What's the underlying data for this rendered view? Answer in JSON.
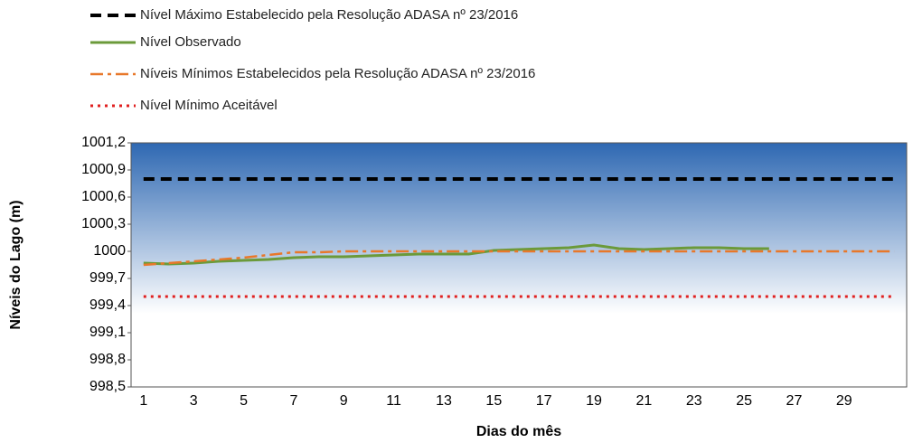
{
  "chart_data": {
    "type": "line",
    "x_label": "Dias do mês",
    "y_label": "Níveis do Lago (m)",
    "categories": [
      "1",
      null,
      "3",
      null,
      "5",
      null,
      "7",
      null,
      "9",
      null,
      "11",
      null,
      "13",
      null,
      "15",
      null,
      "17",
      null,
      "19",
      null,
      "21",
      null,
      "23",
      null,
      "25",
      null,
      "27",
      null,
      "29",
      null,
      null
    ],
    "ylim": [
      998.5,
      1001.2
    ],
    "yticks": [
      {
        "value": 998.5,
        "label": "998,5"
      },
      {
        "value": 998.8,
        "label": "998,8"
      },
      {
        "value": 999.1,
        "label": "999,1"
      },
      {
        "value": 999.4,
        "label": "999,4"
      },
      {
        "value": 999.7,
        "label": "999,7"
      },
      1000,
      {
        "value": 1000.3,
        "label": "1000,3"
      },
      {
        "value": 1000.6,
        "label": "1000,6"
      },
      {
        "value": 1000.9,
        "label": "1000,9"
      },
      {
        "value": 1001.2,
        "label": "1001,2"
      }
    ],
    "legend_position": "top",
    "series": [
      {
        "name": "Nível Máximo Estabelecido pela Resolução ADASA nº 23/2016",
        "color": "#000000",
        "style": "dashed",
        "values": [
          1000.8,
          1000.8,
          1000.8,
          1000.8,
          1000.8,
          1000.8,
          1000.8,
          1000.8,
          1000.8,
          1000.8,
          1000.8,
          1000.8,
          1000.8,
          1000.8,
          1000.8,
          1000.8,
          1000.8,
          1000.8,
          1000.8,
          1000.8,
          1000.8,
          1000.8,
          1000.8,
          1000.8,
          1000.8,
          1000.8,
          1000.8,
          1000.8,
          1000.8,
          1000.8,
          1000.8
        ]
      },
      {
        "name": "Nível Observado",
        "color": "#6b9a3a",
        "style": "solid",
        "values": [
          999.87,
          999.86,
          999.87,
          999.89,
          999.9,
          999.91,
          999.93,
          999.94,
          999.94,
          999.95,
          999.96,
          999.97,
          999.97,
          999.97,
          1000.01,
          1000.02,
          1000.03,
          1000.04,
          1000.07,
          1000.03,
          1000.02,
          1000.03,
          1000.04,
          1000.04,
          1000.03,
          1000.03,
          null,
          null,
          null,
          null,
          null
        ]
      },
      {
        "name": "Níveis Mínimos Estabelecidos pela Resolução ADASA nº 23/2016",
        "color": "#e8782a",
        "style": "dashdot",
        "values": [
          999.85,
          999.87,
          999.89,
          999.91,
          999.93,
          999.96,
          999.99,
          999.99,
          1000,
          1000,
          1000,
          1000,
          1000,
          1000,
          1000,
          1000,
          1000,
          1000,
          1000,
          1000,
          1000,
          1000,
          1000,
          1000,
          1000,
          1000,
          1000,
          1000,
          1000,
          1000,
          1000
        ]
      },
      {
        "name": "Nível Mínimo Aceitável",
        "color": "#e02020",
        "style": "dotted",
        "values": [
          999.5,
          999.5,
          999.5,
          999.5,
          999.5,
          999.5,
          999.5,
          999.5,
          999.5,
          999.5,
          999.5,
          999.5,
          999.5,
          999.5,
          999.5,
          999.5,
          999.5,
          999.5,
          999.5,
          999.5,
          999.5,
          999.5,
          999.5,
          999.5,
          999.5,
          999.5,
          999.5,
          999.5,
          999.5,
          999.5,
          999.5
        ]
      }
    ]
  }
}
